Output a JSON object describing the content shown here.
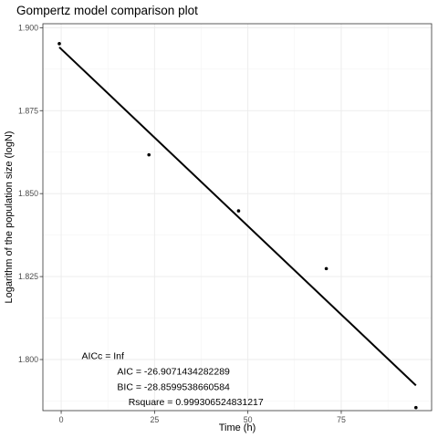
{
  "chart_data": {
    "type": "scatter",
    "title": "Gompertz model comparison plot",
    "xlabel": "Time (h)",
    "ylabel": "Logarithm of the population size (logN)",
    "xlim": [
      -4.9,
      99.2
    ],
    "ylim": [
      1.7846,
      1.9012
    ],
    "xticks": [
      0,
      25,
      50,
      75
    ],
    "xtick_labels": [
      "0",
      "25",
      "50",
      "75"
    ],
    "yticks": [
      1.8,
      1.825,
      1.85,
      1.875,
      1.9
    ],
    "ytick_labels": [
      "1.800",
      "1.825",
      "1.850",
      "1.875",
      "1.900"
    ],
    "grid": true,
    "points": {
      "x": [
        -0.5,
        23.5,
        47.5,
        71.0,
        95.0
      ],
      "y": [
        1.8952,
        1.8617,
        1.8448,
        1.8274,
        1.7855
      ]
    },
    "fit_line": {
      "x": [
        -0.5,
        95.0
      ],
      "y": [
        1.8941,
        1.7922
      ]
    },
    "annotations": [
      {
        "text": "AICc = Inf",
        "x": 5.5,
        "y": 1.8001
      },
      {
        "text": "AIC = -26.9071434282289",
        "x": 15.0,
        "y": 1.7955
      },
      {
        "text": "BIC = -28.8599538660584",
        "x": 15.0,
        "y": 1.7908
      },
      {
        "text": "Rsquare = 0.999306524831217",
        "x": 18.0,
        "y": 1.7862
      }
    ]
  }
}
